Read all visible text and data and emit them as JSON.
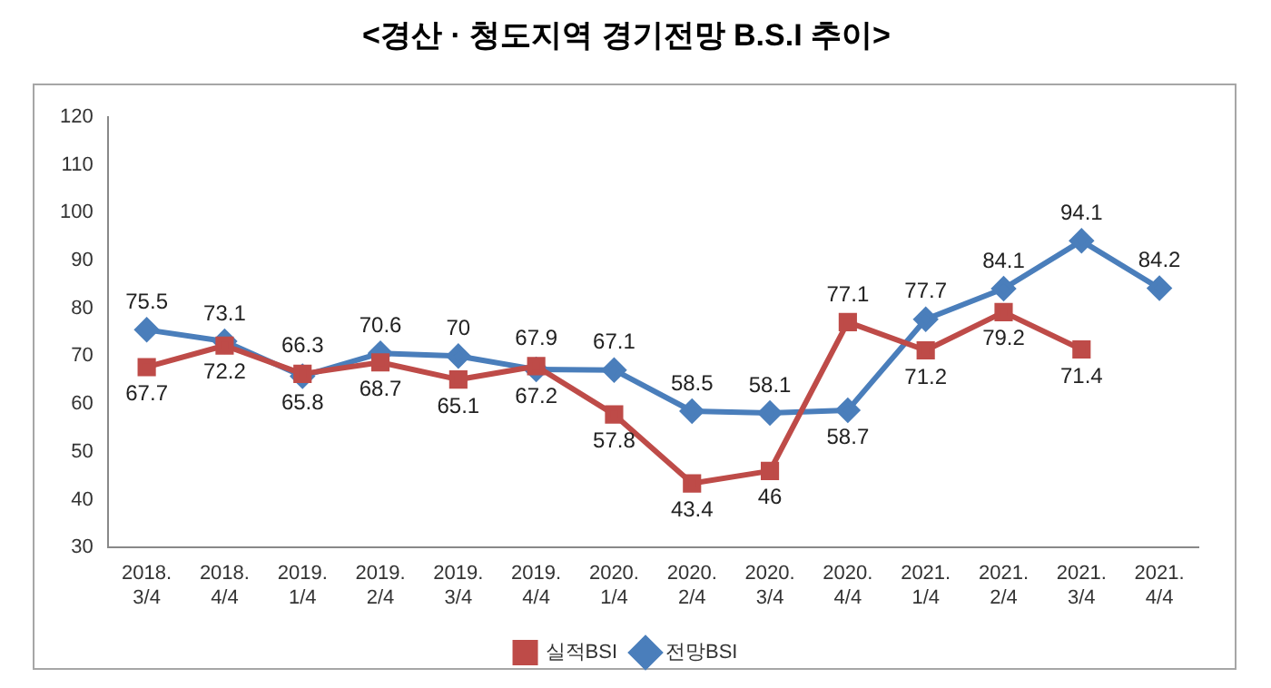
{
  "chart_data": {
    "type": "line",
    "title": "<경산 · 청도지역 경기전망 B.S.I 추이>",
    "categories": [
      "2018.3/4",
      "2018.4/4",
      "2019.1/4",
      "2019.2/4",
      "2019.3/4",
      "2019.4/4",
      "2020.1/4",
      "2020.2/4",
      "2020.3/4",
      "2020.4/4",
      "2021.1/4",
      "2021.2/4",
      "2021.3/4",
      "2021.4/4"
    ],
    "series": [
      {
        "name": "실적BSI",
        "color": "#be4b48",
        "marker": "square",
        "values": [
          67.7,
          72.2,
          66.3,
          68.7,
          65.1,
          67.9,
          57.8,
          43.4,
          46,
          77.1,
          71.2,
          79.2,
          71.4,
          null
        ]
      },
      {
        "name": "전망BSI",
        "color": "#4a7ebb",
        "marker": "diamond",
        "values": [
          75.5,
          73.1,
          65.8,
          70.6,
          70,
          67.2,
          67.1,
          58.5,
          58.1,
          58.7,
          77.7,
          84.1,
          94.1,
          84.2
        ]
      }
    ],
    "ylim": [
      30,
      120
    ],
    "yticks": [
      30,
      40,
      50,
      60,
      70,
      80,
      90,
      100,
      110,
      120
    ],
    "grid": false,
    "legend": "bottom",
    "data_labels": true,
    "line_style": "solid"
  }
}
